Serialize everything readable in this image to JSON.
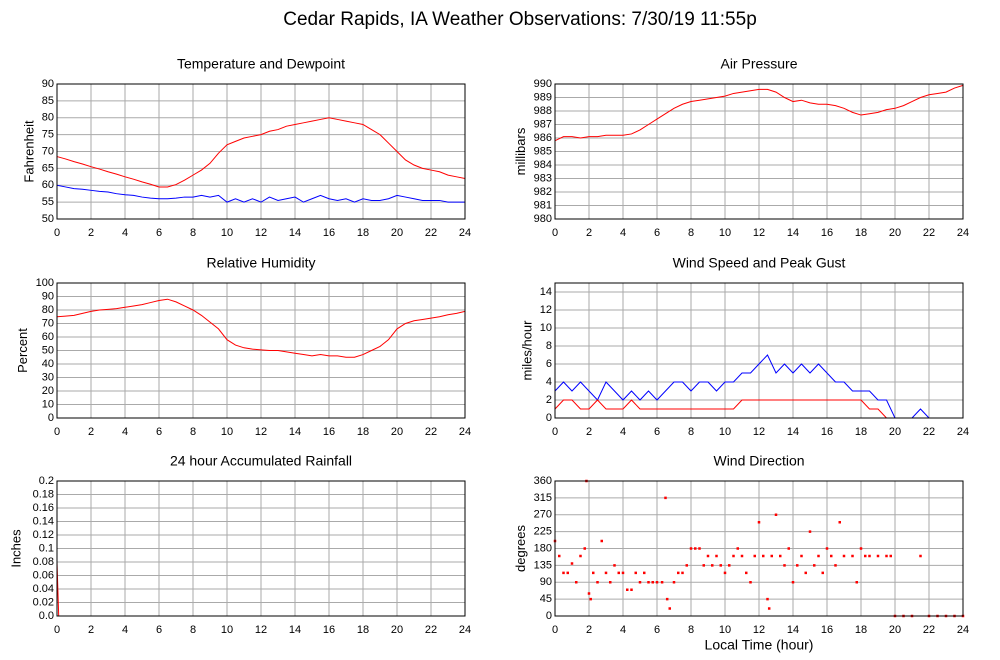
{
  "title": "Cedar Rapids, IA Weather Observations: 7/30/19 11:55p",
  "chart_data": [
    {
      "type": "line",
      "title": "Temperature and Dewpoint",
      "y_label": "Fahrenheit",
      "x": [
        0,
        0.5,
        1,
        1.5,
        2,
        2.5,
        3,
        3.5,
        4,
        4.5,
        5,
        5.5,
        6,
        6.5,
        7,
        7.5,
        8,
        8.5,
        9,
        9.5,
        10,
        10.5,
        11,
        11.5,
        12,
        12.5,
        13,
        13.5,
        14,
        14.5,
        15,
        15.5,
        16,
        16.5,
        17,
        17.5,
        18,
        18.5,
        19,
        19.5,
        20,
        20.5,
        21,
        21.5,
        22,
        22.5,
        23,
        23.5,
        24
      ],
      "series": [
        {
          "color": "#ff0000",
          "values": [
            68.5,
            67.8,
            67,
            66.3,
            65.5,
            64.8,
            64,
            63.3,
            62.5,
            61.8,
            61,
            60.3,
            59.5,
            59.5,
            60.2,
            61.5,
            63,
            64.5,
            66.5,
            69.5,
            72,
            73,
            74,
            74.5,
            75,
            76,
            76.5,
            77.5,
            78,
            78.5,
            79,
            79.5,
            80,
            79.5,
            79,
            78.5,
            78,
            76.5,
            75,
            72.5,
            70,
            67.5,
            66,
            65,
            64.5,
            64,
            63,
            62.5,
            62
          ]
        },
        {
          "color": "#0000ff",
          "values": [
            60,
            59.5,
            59,
            58.8,
            58.5,
            58.2,
            58,
            57.5,
            57.2,
            57,
            56.5,
            56.2,
            56,
            56,
            56.2,
            56.5,
            56.5,
            57,
            56.5,
            57,
            55,
            56,
            55,
            56,
            55,
            56.5,
            55.5,
            56,
            56.5,
            55,
            56,
            57,
            56,
            55.5,
            56,
            55,
            56,
            55.5,
            55.5,
            56,
            57,
            56.5,
            56,
            55.5,
            55.5,
            55.5,
            55,
            55,
            55
          ]
        }
      ],
      "xlim": [
        0,
        24
      ],
      "xticks": [
        0,
        2,
        4,
        6,
        8,
        10,
        12,
        14,
        16,
        18,
        20,
        22,
        24
      ],
      "ylim": [
        50,
        90
      ],
      "yticks": [
        50,
        55,
        60,
        65,
        70,
        75,
        80,
        85,
        90
      ],
      "grid": true
    },
    {
      "type": "line",
      "title": "Air Pressure",
      "y_label": "millibars",
      "x": [
        0,
        0.5,
        1,
        1.5,
        2,
        2.5,
        3,
        3.5,
        4,
        4.5,
        5,
        5.5,
        6,
        6.5,
        7,
        7.5,
        8,
        8.5,
        9,
        9.5,
        10,
        10.5,
        11,
        11.5,
        12,
        12.5,
        13,
        13.5,
        14,
        14.5,
        15,
        15.5,
        16,
        16.5,
        17,
        17.5,
        18,
        18.5,
        19,
        19.5,
        20,
        20.5,
        21,
        21.5,
        22,
        22.5,
        23,
        23.5,
        24
      ],
      "series": [
        {
          "color": "#ff0000",
          "values": [
            985.8,
            986.1,
            986.1,
            986.0,
            986.1,
            986.1,
            986.2,
            986.2,
            986.2,
            986.3,
            986.6,
            987,
            987.4,
            987.8,
            988.2,
            988.5,
            988.7,
            988.8,
            988.9,
            989,
            989.1,
            989.3,
            989.4,
            989.5,
            989.6,
            989.6,
            989.4,
            989.0,
            988.7,
            988.8,
            988.6,
            988.5,
            988.5,
            988.4,
            988.2,
            987.9,
            987.7,
            987.8,
            987.9,
            988.1,
            988.2,
            988.4,
            988.7,
            989,
            989.2,
            989.3,
            989.4,
            989.7,
            989.9
          ]
        }
      ],
      "xlim": [
        0,
        24
      ],
      "xticks": [
        0,
        2,
        4,
        6,
        8,
        10,
        12,
        14,
        16,
        18,
        20,
        22,
        24
      ],
      "ylim": [
        980,
        990
      ],
      "yticks": [
        980,
        981,
        982,
        983,
        984,
        985,
        986,
        987,
        988,
        989,
        990
      ],
      "grid": true
    },
    {
      "type": "line",
      "title": "Relative Humidity",
      "y_label": "Percent",
      "x": [
        0,
        0.5,
        1,
        1.5,
        2,
        2.5,
        3,
        3.5,
        4,
        4.5,
        5,
        5.5,
        6,
        6.5,
        7,
        7.5,
        8,
        8.5,
        9,
        9.5,
        10,
        10.5,
        11,
        11.5,
        12,
        12.5,
        13,
        13.5,
        14,
        14.5,
        15,
        15.5,
        16,
        16.5,
        17,
        17.5,
        18,
        18.5,
        19,
        19.5,
        20,
        20.5,
        21,
        21.5,
        22,
        22.5,
        23,
        23.5,
        24
      ],
      "series": [
        {
          "color": "#ff0000",
          "values": [
            75,
            75.5,
            76,
            77.5,
            79,
            80,
            80.5,
            81,
            82,
            83,
            84,
            85.5,
            87,
            88,
            86,
            83,
            80,
            76,
            71,
            66,
            58,
            54,
            52,
            51,
            50.5,
            50,
            50,
            49,
            48,
            47,
            46,
            47,
            46,
            46,
            45,
            45,
            47,
            50,
            53,
            58,
            66,
            70,
            72,
            73,
            74,
            75,
            76.5,
            77.5,
            79
          ]
        }
      ],
      "xlim": [
        0,
        24
      ],
      "xticks": [
        0,
        2,
        4,
        6,
        8,
        10,
        12,
        14,
        16,
        18,
        20,
        22,
        24
      ],
      "ylim": [
        0,
        100
      ],
      "yticks": [
        0,
        10,
        20,
        30,
        40,
        50,
        60,
        70,
        80,
        90,
        100
      ],
      "grid": true
    },
    {
      "type": "line",
      "title": "Wind Speed and Peak Gust",
      "y_label": "miles/hour",
      "x": [
        0,
        0.5,
        1,
        1.5,
        2,
        2.5,
        3,
        3.5,
        4,
        4.5,
        5,
        5.5,
        6,
        6.5,
        7,
        7.5,
        8,
        8.5,
        9,
        9.5,
        10,
        10.5,
        11,
        11.5,
        12,
        12.5,
        13,
        13.5,
        14,
        14.5,
        15,
        15.5,
        16,
        16.5,
        17,
        17.5,
        18,
        18.5,
        19,
        19.5,
        20,
        20.5,
        21,
        21.5,
        22,
        22.5,
        23,
        23.5,
        24
      ],
      "series": [
        {
          "color": "#0000ff",
          "values": [
            3,
            4,
            3,
            4,
            3,
            2,
            4,
            3,
            2,
            3,
            2,
            3,
            2,
            3,
            4,
            4,
            3,
            4,
            4,
            3,
            4,
            4,
            5,
            5,
            6,
            7,
            5,
            6,
            5,
            6,
            5,
            6,
            5,
            4,
            4,
            3,
            3,
            3,
            2,
            2,
            0,
            0,
            0,
            1,
            0,
            0,
            0,
            0,
            0
          ]
        },
        {
          "color": "#ff0000",
          "values": [
            1,
            2,
            2,
            1,
            1,
            2,
            1,
            1,
            1,
            2,
            1,
            1,
            1,
            1,
            1,
            1,
            1,
            1,
            1,
            1,
            1,
            1,
            2,
            2,
            2,
            2,
            2,
            2,
            2,
            2,
            2,
            2,
            2,
            2,
            2,
            2,
            2,
            1,
            1,
            0,
            0,
            0,
            0,
            0,
            0,
            0,
            0,
            0,
            0
          ]
        }
      ],
      "xlim": [
        0,
        24
      ],
      "xticks": [
        0,
        2,
        4,
        6,
        8,
        10,
        12,
        14,
        16,
        18,
        20,
        22,
        24
      ],
      "ylim": [
        0,
        15
      ],
      "yticks": [
        0,
        2,
        4,
        6,
        8,
        10,
        12,
        14
      ],
      "grid": true
    },
    {
      "type": "line",
      "title": "24 hour Accumulated Rainfall",
      "y_label": "Inches",
      "x": [
        0,
        0.1,
        24
      ],
      "series": [
        {
          "color": "#ff0000",
          "values": [
            0.08,
            0,
            0
          ]
        }
      ],
      "xlim": [
        0,
        24
      ],
      "xticks": [
        0,
        2,
        4,
        6,
        8,
        10,
        12,
        14,
        16,
        18,
        20,
        22,
        24
      ],
      "ylim": [
        0,
        0.2
      ],
      "yticks": [
        {
          "value": 0,
          "label": "0.0"
        },
        0.02,
        0.04,
        0.06,
        0.08,
        0.1,
        0.12,
        0.14,
        0.16,
        0.18,
        0.2
      ],
      "grid": true
    },
    {
      "type": "scatter",
      "title": "Wind Direction",
      "y_label": "degrees",
      "x_label": "Local Time (hour)",
      "color": "#ff0000",
      "x": [
        0,
        0.25,
        0.5,
        0.75,
        1,
        1.25,
        1.5,
        1.75,
        1.85,
        2,
        2.1,
        2.25,
        2.5,
        2.75,
        3,
        3.25,
        3.5,
        3.75,
        4,
        4.25,
        4.5,
        4.75,
        5,
        5.25,
        5.5,
        5.75,
        6,
        6.3,
        6.5,
        6.6,
        6.75,
        7,
        7.25,
        7.5,
        7.75,
        8,
        8.25,
        8.5,
        8.75,
        9,
        9.25,
        9.5,
        9.75,
        10,
        10.25,
        10.5,
        10.75,
        11,
        11.25,
        11.5,
        11.75,
        12,
        12.25,
        12.5,
        12.6,
        12.75,
        13,
        13.25,
        13.5,
        13.75,
        14,
        14.25,
        14.5,
        14.75,
        15,
        15.25,
        15.5,
        15.75,
        16,
        16.25,
        16.5,
        16.75,
        17,
        17.5,
        17.75,
        18,
        18.25,
        18.5,
        19,
        19.5,
        19.75,
        20,
        20.5,
        21,
        21.5,
        22,
        22.5,
        23,
        23.5,
        24
      ],
      "values": [
        200,
        160,
        115,
        115,
        140,
        90,
        160,
        180,
        360,
        60,
        45,
        115,
        90,
        200,
        115,
        90,
        135,
        115,
        115,
        70,
        70,
        115,
        90,
        115,
        90,
        90,
        90,
        90,
        315,
        45,
        20,
        90,
        115,
        115,
        135,
        180,
        180,
        180,
        135,
        160,
        135,
        160,
        135,
        115,
        135,
        160,
        180,
        160,
        115,
        90,
        160,
        250,
        160,
        45,
        20,
        160,
        270,
        160,
        135,
        180,
        90,
        135,
        160,
        115,
        225,
        135,
        160,
        115,
        180,
        160,
        135,
        250,
        160,
        160,
        90,
        180,
        160,
        160,
        160,
        160,
        160,
        0,
        0,
        0,
        160,
        0,
        0,
        0,
        0,
        0
      ],
      "xlim": [
        0,
        24
      ],
      "xticks": [
        0,
        2,
        4,
        6,
        8,
        10,
        12,
        14,
        16,
        18,
        20,
        22,
        24
      ],
      "ylim": [
        0,
        360
      ],
      "yticks": [
        0,
        45,
        90,
        135,
        180,
        225,
        270,
        315,
        360
      ],
      "grid": true
    }
  ]
}
